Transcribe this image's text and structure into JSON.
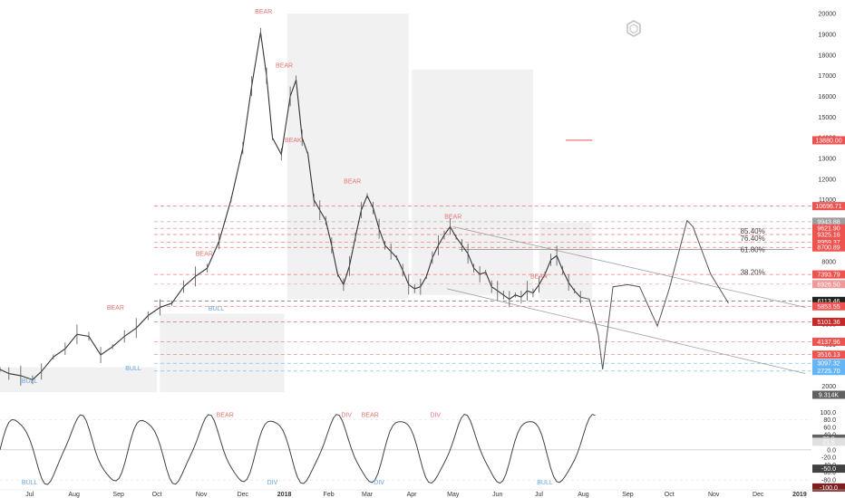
{
  "logo": "hexagon-logo-icon",
  "chart_data": {
    "type": "line",
    "main": {
      "ylim": [
        1400,
        20400
      ],
      "y_ticks": [
        2000,
        3000,
        4000,
        5000,
        6000,
        7000,
        8000,
        9000,
        10000,
        11000,
        12000,
        13000,
        14000,
        15000,
        16000,
        17000,
        18000,
        19000,
        20000
      ],
      "price_path": [
        [
          0,
          2800
        ],
        [
          0.3,
          2600
        ],
        [
          0.7,
          2500
        ],
        [
          1.1,
          2300
        ],
        [
          1.4,
          2700
        ],
        [
          1.8,
          3400
        ],
        [
          2.2,
          3800
        ],
        [
          2.6,
          4500
        ],
        [
          3.0,
          4400
        ],
        [
          3.4,
          3500
        ],
        [
          3.8,
          3900
        ],
        [
          4.2,
          4400
        ],
        [
          4.6,
          4800
        ],
        [
          5.0,
          5400
        ],
        [
          5.4,
          5800
        ],
        [
          5.8,
          6000
        ],
        [
          6.2,
          6800
        ],
        [
          6.6,
          7300
        ],
        [
          7.0,
          7700
        ],
        [
          7.4,
          9000
        ],
        [
          7.8,
          11000
        ],
        [
          8.2,
          13500
        ],
        [
          8.5,
          16500
        ],
        [
          8.8,
          19100
        ],
        [
          9.0,
          17000
        ],
        [
          9.2,
          14000
        ],
        [
          9.5,
          13200
        ],
        [
          9.8,
          16000
        ],
        [
          10.0,
          16800
        ],
        [
          10.2,
          14000
        ],
        [
          10.4,
          13200
        ],
        [
          10.6,
          11000
        ],
        [
          10.8,
          10500
        ],
        [
          11.0,
          10000
        ],
        [
          11.2,
          8800
        ],
        [
          11.4,
          7400
        ],
        [
          11.6,
          6900
        ],
        [
          11.8,
          7800
        ],
        [
          12.0,
          9200
        ],
        [
          12.2,
          10500
        ],
        [
          12.4,
          11200
        ],
        [
          12.6,
          10600
        ],
        [
          12.8,
          9600
        ],
        [
          13.0,
          8800
        ],
        [
          13.2,
          8500
        ],
        [
          13.4,
          8200
        ],
        [
          13.6,
          7600
        ],
        [
          13.8,
          6900
        ],
        [
          14.0,
          6700
        ],
        [
          14.2,
          6800
        ],
        [
          14.4,
          7300
        ],
        [
          14.6,
          8200
        ],
        [
          14.8,
          8800
        ],
        [
          15.0,
          9300
        ],
        [
          15.2,
          9700
        ],
        [
          15.4,
          9200
        ],
        [
          15.6,
          8800
        ],
        [
          15.8,
          8400
        ],
        [
          16.0,
          7700
        ],
        [
          16.2,
          7400
        ],
        [
          16.4,
          7500
        ],
        [
          16.6,
          6800
        ],
        [
          16.8,
          6600
        ],
        [
          17.0,
          6400
        ],
        [
          17.2,
          6200
        ],
        [
          17.4,
          6400
        ],
        [
          17.6,
          6300
        ],
        [
          17.8,
          6600
        ],
        [
          18.0,
          6500
        ],
        [
          18.2,
          6900
        ],
        [
          18.4,
          7400
        ],
        [
          18.6,
          8100
        ],
        [
          18.8,
          8300
        ],
        [
          19.0,
          7600
        ],
        [
          19.2,
          7000
        ],
        [
          19.4,
          6600
        ],
        [
          19.6,
          6300
        ]
      ],
      "projection_path": [
        [
          19.6,
          6300
        ],
        [
          19.9,
          6200
        ],
        [
          20.2,
          4500
        ],
        [
          20.35,
          2800
        ],
        [
          20.7,
          6800
        ],
        [
          21.2,
          6900
        ],
        [
          21.6,
          6800
        ],
        [
          22.2,
          4900
        ],
        [
          22.6,
          6700
        ],
        [
          23.2,
          10000
        ],
        [
          23.4,
          9700
        ],
        [
          24.0,
          7400
        ],
        [
          24.6,
          6000
        ]
      ],
      "last_price": "6113.46",
      "price_labels": [
        {
          "text": "10696.71",
          "value": 10696.71,
          "color": "#ef5350"
        },
        {
          "text": "9943.88",
          "value": 9943.88,
          "color": "#9e9e9e"
        },
        {
          "text": "9621.90",
          "value": 9621.9,
          "color": "#ef5350"
        },
        {
          "text": "9325.16",
          "value": 9325.16,
          "color": "#ef5350"
        },
        {
          "text": "8959.37",
          "value": 8959.37,
          "color": "#ef5350"
        },
        {
          "text": "8700.89",
          "value": 8700.89,
          "color": "#ef5350"
        },
        {
          "text": "7393.79",
          "value": 7393.79,
          "color": "#ef5350"
        },
        {
          "text": "6926.50",
          "value": 6926.5,
          "color": "#ef9a9a"
        },
        {
          "text": "6113.46",
          "value": 6113.46,
          "color": "#212121"
        },
        {
          "text": "5853.55",
          "value": 5853.55,
          "color": "#ef5350"
        },
        {
          "text": "5101.36",
          "value": 5101.36,
          "color": "#c62828"
        },
        {
          "text": "4137.96",
          "value": 4137.96,
          "color": "#ef5350"
        },
        {
          "text": "3516.13",
          "value": 3516.13,
          "color": "#ef5350"
        },
        {
          "text": "3097.32",
          "value": 3097.32,
          "color": "#64b5f6"
        },
        {
          "text": "2725.70",
          "value": 2725.7,
          "color": "#64b5f6"
        },
        {
          "text": "13880.00",
          "value": 13880,
          "color": "#ef5350"
        }
      ],
      "fib_levels": [
        {
          "label": "85.40%",
          "value": 9500
        },
        {
          "label": "76.40%",
          "value": 9150
        },
        {
          "label": "61.80%",
          "value": 8600
        },
        {
          "label": "38.20%",
          "value": 7500
        }
      ],
      "annotations": [
        {
          "text": "BEAR",
          "kind": "bear",
          "x": 8.9,
          "y": 20000
        },
        {
          "text": "BEAR",
          "kind": "bear",
          "x": 9.6,
          "y": 17400
        },
        {
          "text": "BEAK",
          "kind": "bear",
          "x": 9.9,
          "y": 13800
        },
        {
          "text": "BEAR",
          "kind": "bear",
          "x": 11.9,
          "y": 11800
        },
        {
          "text": "BEAR",
          "kind": "bear",
          "x": 6.9,
          "y": 8300
        },
        {
          "text": "BEAR",
          "kind": "bear",
          "x": 3.9,
          "y": 5700
        },
        {
          "text": "BEAR",
          "kind": "bear",
          "x": 15.3,
          "y": 10100
        },
        {
          "text": "BEAR",
          "kind": "bear",
          "x": 18.2,
          "y": 7200
        },
        {
          "text": "BULL",
          "kind": "bull",
          "x": 7.3,
          "y": 5650
        },
        {
          "text": "BULL",
          "kind": "bull",
          "x": 4.5,
          "y": 2750
        },
        {
          "text": "BULL",
          "kind": "bull",
          "x": 1.0,
          "y": 2150
        }
      ]
    },
    "oscillator": {
      "ylim": [
        -104,
        108
      ],
      "y_ticks": [
        100,
        80,
        60,
        40,
        20,
        0,
        -20,
        -40,
        -60,
        -80,
        -100
      ],
      "labels": [
        {
          "text": "29.9",
          "value": 29.9,
          "color": "#616161"
        },
        {
          "text": "21.5",
          "value": 21.5,
          "color": "#e0e0e0"
        },
        {
          "text": "-50.0",
          "value": -50,
          "color": "#424242"
        },
        {
          "text": "-100.0",
          "value": -100,
          "color": "#7b1f1f"
        },
        {
          "text": "9.314K",
          "value": null,
          "color": "#616161"
        }
      ],
      "annotations": [
        {
          "text": "BULL",
          "kind": "bull",
          "x": 1.0
        },
        {
          "text": "BEAR",
          "kind": "bear",
          "x": 7.6
        },
        {
          "text": "DIV",
          "kind": "bear",
          "x": 11.7
        },
        {
          "text": "BEAR",
          "kind": "bear",
          "x": 12.5
        },
        {
          "text": "DIV",
          "kind": "bear",
          "x": 14.7
        },
        {
          "text": "DIV",
          "kind": "bull",
          "x": 9.2
        },
        {
          "text": "DIV",
          "kind": "bull",
          "x": 12.8
        },
        {
          "text": "BULL",
          "kind": "bull",
          "x": 18.4
        }
      ]
    },
    "x_ticks": [
      {
        "label": "Jul",
        "x": 1
      },
      {
        "label": "Aug",
        "x": 2.5
      },
      {
        "label": "Sep",
        "x": 4
      },
      {
        "label": "Oct",
        "x": 5.3
      },
      {
        "label": "Nov",
        "x": 6.8
      },
      {
        "label": "Dec",
        "x": 8.2
      },
      {
        "label": "2018",
        "x": 9.6,
        "bold": true
      },
      {
        "label": "Feb",
        "x": 11.1
      },
      {
        "label": "Mar",
        "x": 12.4
      },
      {
        "label": "Apr",
        "x": 13.9
      },
      {
        "label": "May",
        "x": 15.3
      },
      {
        "label": "Jun",
        "x": 16.8
      },
      {
        "label": "Jul",
        "x": 18.2
      },
      {
        "label": "Aug",
        "x": 19.7
      },
      {
        "label": "Sep",
        "x": 21.2
      },
      {
        "label": "Oct",
        "x": 22.6
      },
      {
        "label": "Nov",
        "x": 24.1
      },
      {
        "label": "Dec",
        "x": 25.6
      },
      {
        "label": "2019",
        "x": 27.0,
        "bold": true
      }
    ],
    "xlim": [
      0,
      27.4
    ],
    "grid": false,
    "legend": "none",
    "colors": {
      "bear": "#ef5350",
      "bull": "#64b5f6",
      "price": "#333333",
      "projection": "#555555",
      "zone": "#e6e6e6"
    }
  }
}
